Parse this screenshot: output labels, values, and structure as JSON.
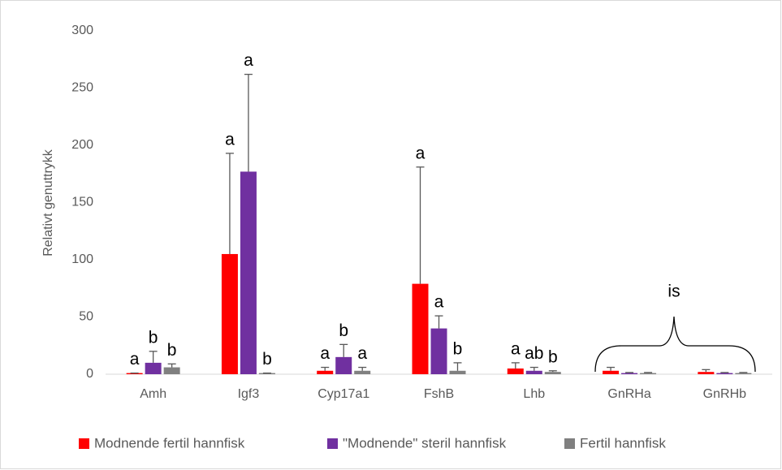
{
  "chart_data": {
    "type": "bar",
    "y_label": "Relativt genuttrykk",
    "categories": [
      "Amh",
      "Igf3",
      "Cyp17a1",
      "FshB",
      "Lhb",
      "GnRHa",
      "GnRHb"
    ],
    "series": [
      {
        "name": "Modnende fertil hannfisk",
        "color": "#ff0000",
        "values": [
          1,
          105,
          3,
          79,
          5,
          3,
          2
        ],
        "errors": [
          0,
          88,
          3,
          102,
          5,
          3,
          2
        ],
        "letters": [
          "a",
          "a",
          "a",
          "a",
          "a",
          null,
          null
        ]
      },
      {
        "name": "\"Modnende\" steril hannfisk",
        "color": "#7030a0",
        "values": [
          10,
          177,
          15,
          40,
          3,
          1,
          1
        ],
        "errors": [
          10,
          85,
          11,
          11,
          3,
          0.5,
          0.5
        ],
        "letters": [
          "b",
          "a",
          "b",
          "a",
          "ab",
          null,
          null
        ]
      },
      {
        "name": "Fertil hannfisk",
        "color": "#808080",
        "values": [
          6,
          1,
          3,
          3,
          2,
          1,
          1
        ],
        "errors": [
          3,
          0,
          3,
          7,
          1,
          0.5,
          0.5
        ],
        "letters": [
          "b",
          "b",
          "a",
          "b",
          "b",
          null,
          null
        ]
      }
    ],
    "annotation": "is",
    "ylim": [
      0,
      300
    ],
    "yticks": [
      0,
      50,
      100,
      150,
      200,
      250,
      300
    ],
    "grid": false
  }
}
